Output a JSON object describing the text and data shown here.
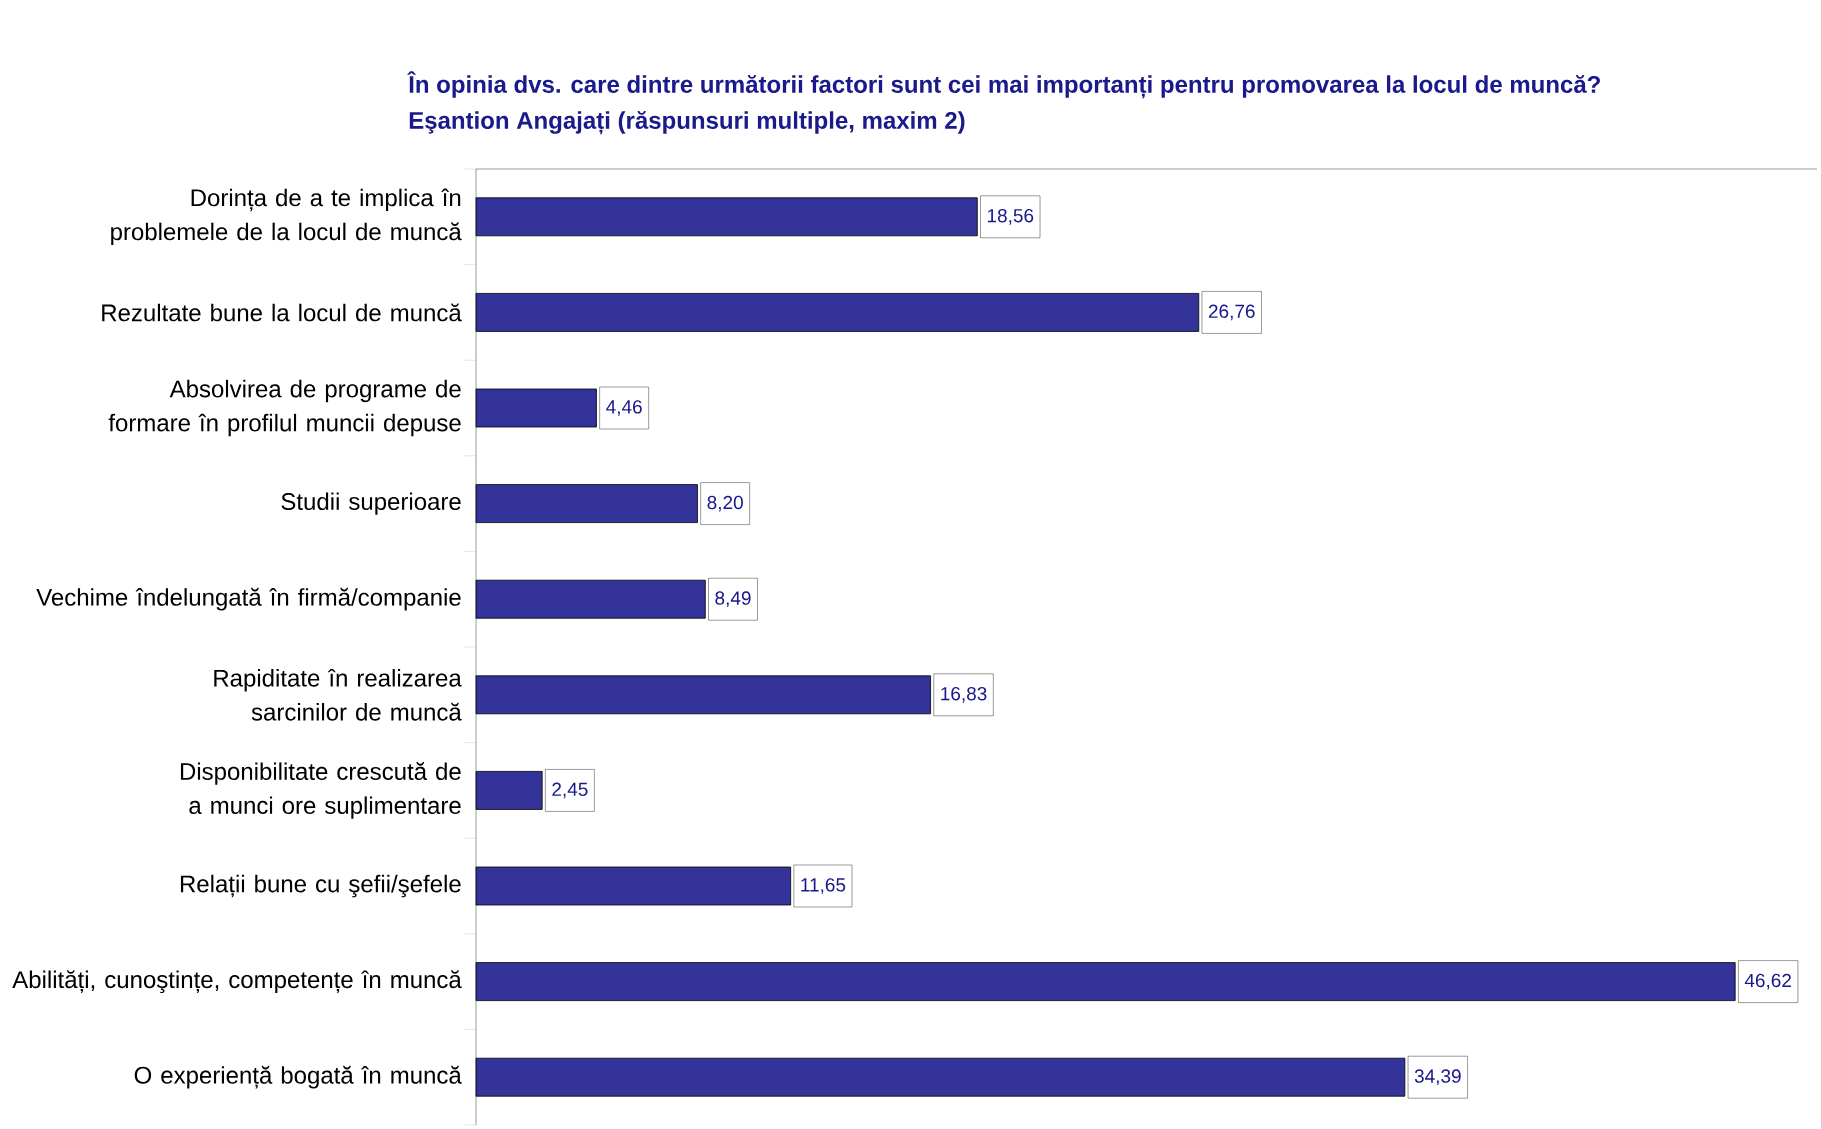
{
  "chart_data": {
    "type": "bar",
    "orientation": "horizontal",
    "title": "În opinia dvs. care dintre următorii factori sunt cei mai importanți pentru promovarea la locul de muncă?",
    "subtitle": "Eşantion Angajați  (răspunsuri multiple, maxim 2)",
    "categories": [
      "Dorința de a te implica în problemele de la locul de muncă",
      "Rezultate bune la locul de muncă",
      "Absolvirea de programe de formare în profilul muncii depuse",
      "Studii superioare",
      "Vechime îndelungată în firmă/companie",
      "Rapiditate în realizarea sarcinilor de muncă",
      "Disponibilitate crescută de a munci ore suplimentare",
      "Relații bune cu şefii/şefele",
      "Abilități, cunoştințe, competențe în muncă",
      "O experiență bogată în muncă"
    ],
    "values": [
      18.56,
      26.76,
      4.46,
      8.2,
      8.49,
      16.83,
      2.45,
      11.65,
      46.62,
      34.39
    ],
    "value_labels": [
      "18,56",
      "26,76",
      "4,46",
      "8,20",
      "8,49",
      "16,83",
      "2,45",
      "11,65",
      "46,62",
      "34,39"
    ],
    "color": "#333399"
  }
}
